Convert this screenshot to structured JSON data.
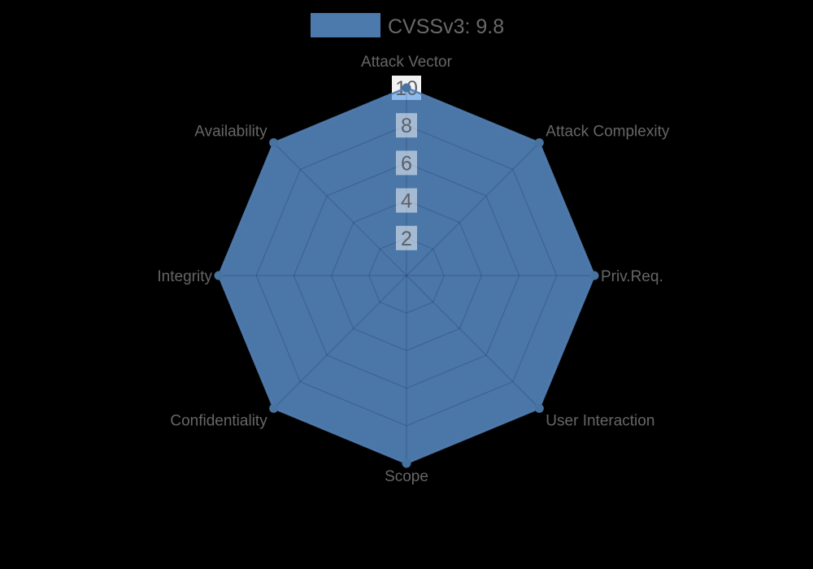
{
  "background_color": "#000000",
  "legend": {
    "swatch_color": "#4d7aad",
    "label": "CVSSv3: 9.8"
  },
  "chart_data": {
    "type": "radar",
    "categories": [
      "Attack Vector",
      "Attack Complexity",
      "Priv.Req.",
      "User Interaction",
      "Scope",
      "Confidentiality",
      "Integrity",
      "Availability"
    ],
    "series": [
      {
        "name": "CVSSv3: 9.8",
        "values": [
          10,
          10,
          10,
          10,
          10,
          10,
          10,
          10
        ]
      }
    ],
    "scale": {
      "min": 0,
      "max": 10,
      "tick_step": 2,
      "ticks": [
        2,
        4,
        6,
        8,
        10
      ]
    },
    "legend_position": "top-center",
    "grid": true,
    "colors": {
      "fill": "rgba(103,164,233,0.72)",
      "border": "rgba(82,125,176,0.9)",
      "marker": "#48739f",
      "grid_line": "rgba(0,0,20,0.16)",
      "axis_label": "#666666",
      "tick_label": "#5b6068",
      "tick_backdrop": "rgba(255,255,255,0.5)",
      "tick_backdrop_outer": "#f2f2f2"
    }
  }
}
